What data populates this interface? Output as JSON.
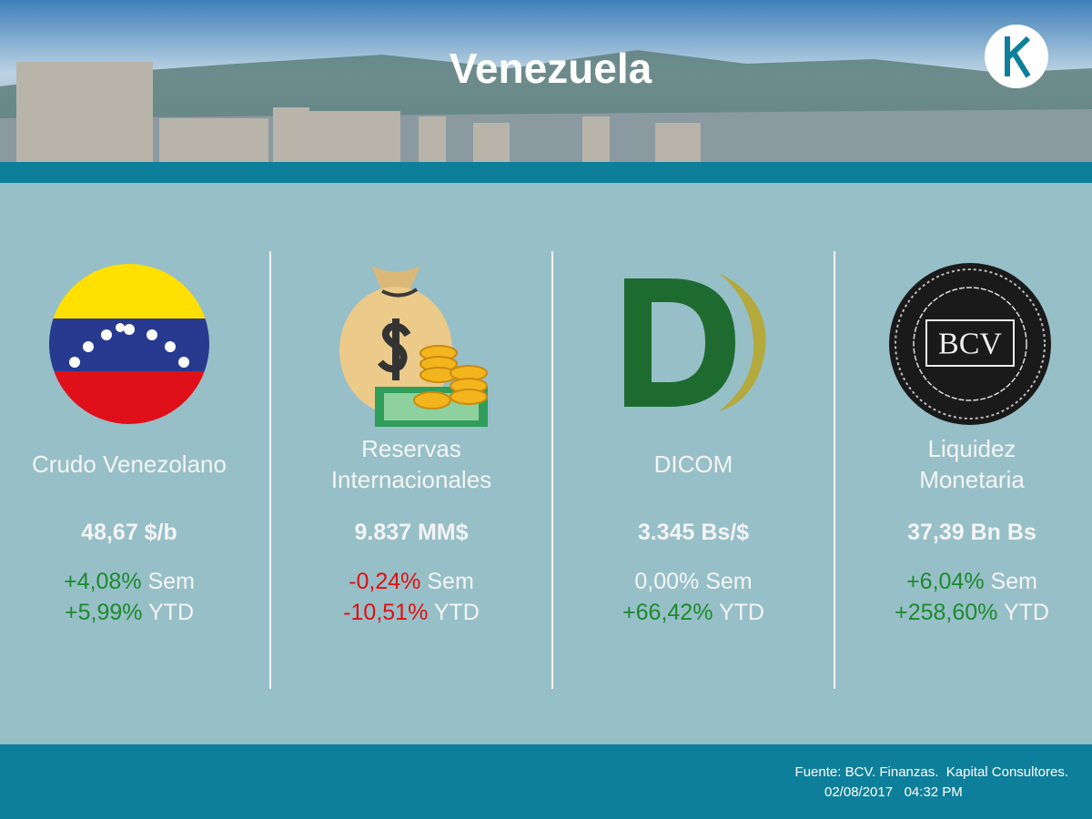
{
  "header": {
    "title": "Venezuela"
  },
  "cards": [
    {
      "name": [
        "Crudo Venezolano"
      ],
      "value": "48,67 $/b",
      "changes": [
        {
          "pct": "+4,08%",
          "label": "Sem",
          "color": "#1b8a2c"
        },
        {
          "pct": "+5,99%",
          "label": "YTD",
          "color": "#1b8a2c"
        }
      ]
    },
    {
      "name": [
        "Reservas",
        "Internacionales"
      ],
      "value": "9.837 MM$",
      "changes": [
        {
          "pct": "-0,24%",
          "label": "Sem",
          "color": "#e01010"
        },
        {
          "pct": "-10,51%",
          "label": "YTD",
          "color": "#e01010"
        }
      ]
    },
    {
      "name": [
        "DICOM"
      ],
      "value": "3.345 Bs/$",
      "changes": [
        {
          "pct": "0,00%",
          "label": "Sem",
          "color": "#f4f4f4"
        },
        {
          "pct": "+66,42%",
          "label": "YTD",
          "color": "#1b8a2c"
        }
      ]
    },
    {
      "name": [
        "Liquidez",
        "Monetaria"
      ],
      "value": "37,39 Bn Bs",
      "logo_text": "BCV",
      "changes": [
        {
          "pct": "+6,04%",
          "label": "Sem",
          "color": "#1b8a2c"
        },
        {
          "pct": "+258,60%",
          "label": "YTD",
          "color": "#1b8a2c"
        }
      ]
    }
  ],
  "footer": {
    "source": "Fuente: BCV. Finanzas.  Kapital Consultores.",
    "date": "02/08/2017",
    "time": "04:32 PM"
  }
}
